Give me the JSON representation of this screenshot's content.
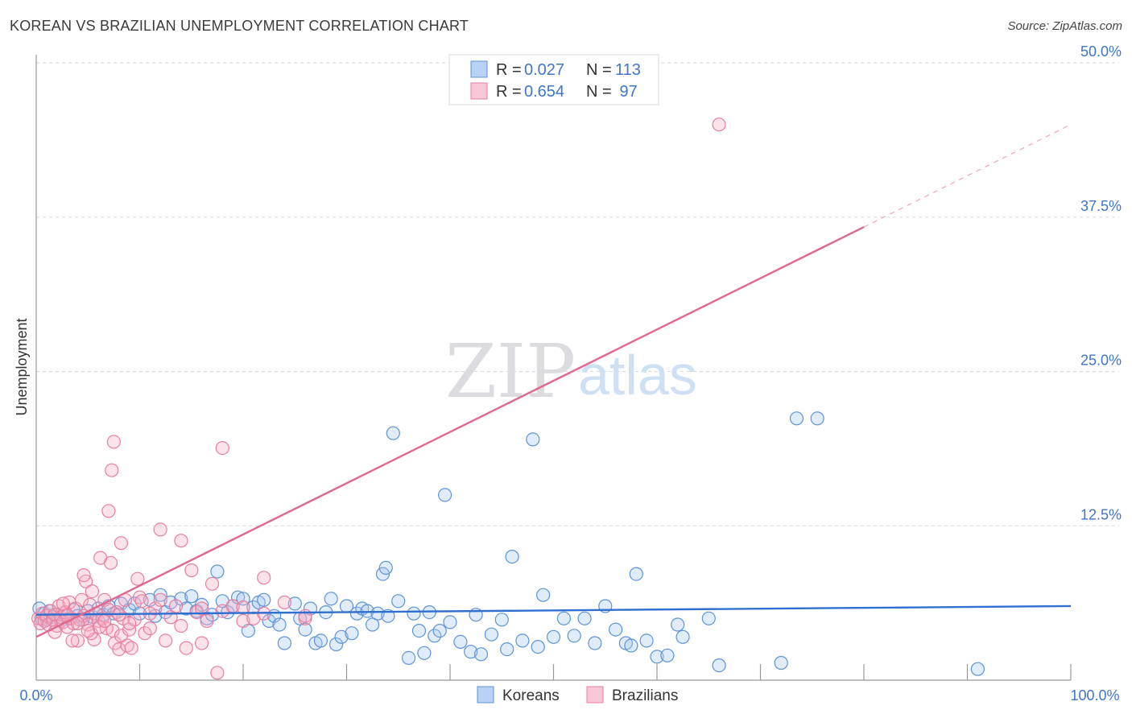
{
  "title": "KOREAN VS BRAZILIAN UNEMPLOYMENT CORRELATION CHART",
  "source": "Source: ZipAtlas.com",
  "watermark": {
    "zip": "ZIP",
    "atlas": "atlas"
  },
  "colors": {
    "korean_fill": "rgba(168,200,242,0.35)",
    "korean_stroke": "#5d93d8",
    "korean_line": "#2f6fd0",
    "brazil_fill": "rgba(246,174,196,0.35)",
    "brazil_stroke": "#e87fa0",
    "brazil_line": "#e0688f",
    "tick": "#3f76c9",
    "grid": "#d8d8e0"
  },
  "stats_legend": [
    {
      "r_label": "R =",
      "r_value": "0.027",
      "n_label": "N =",
      "n_value": "113"
    },
    {
      "r_label": "R =",
      "r_value": "0.654",
      "n_label": "N =",
      "n_value": " 97"
    }
  ],
  "chart_data": {
    "type": "scatter",
    "title": "KOREAN VS BRAZILIAN UNEMPLOYMENT CORRELATION CHART",
    "xlabel": "",
    "ylabel": "Unemployment",
    "xlim": [
      0,
      100
    ],
    "ylim": [
      0,
      50
    ],
    "x_tick_labels": [
      "0.0%",
      "100.0%"
    ],
    "y_ticks": [
      12.5,
      25.0,
      37.5,
      50.0
    ],
    "y_tick_labels": [
      "12.5%",
      "25.0%",
      "37.5%",
      "50.0%"
    ],
    "legend": [
      "Koreans",
      "Brazilians"
    ],
    "series": [
      {
        "name": "Koreans",
        "r": 0.027,
        "n": 113,
        "trend": {
          "x": [
            0,
            100
          ],
          "y": [
            5.3,
            6.0
          ],
          "dashed_from": null
        },
        "points": [
          [
            0.3,
            5.8
          ],
          [
            0.5,
            5.0
          ],
          [
            0.8,
            5.4
          ],
          [
            1.0,
            4.9
          ],
          [
            1.3,
            5.6
          ],
          [
            1.6,
            5.1
          ],
          [
            2.0,
            5.3
          ],
          [
            2.4,
            4.8
          ],
          [
            2.8,
            5.5
          ],
          [
            3.2,
            5.0
          ],
          [
            3.6,
            5.7
          ],
          [
            4.0,
            5.2
          ],
          [
            4.5,
            4.9
          ],
          [
            5.0,
            5.6
          ],
          [
            5.5,
            5.1
          ],
          [
            6.0,
            5.8
          ],
          [
            6.5,
            5.3
          ],
          [
            7.0,
            6.0
          ],
          [
            7.5,
            5.4
          ],
          [
            8.2,
            6.2
          ],
          [
            9.0,
            5.7
          ],
          [
            9.5,
            6.2
          ],
          [
            10.0,
            5.4
          ],
          [
            11.0,
            6.5
          ],
          [
            11.5,
            5.2
          ],
          [
            12.0,
            6.9
          ],
          [
            12.5,
            5.5
          ],
          [
            13.0,
            6.3
          ],
          [
            14.0,
            6.6
          ],
          [
            14.5,
            5.8
          ],
          [
            15.0,
            6.8
          ],
          [
            15.5,
            5.6
          ],
          [
            16.0,
            6.1
          ],
          [
            16.5,
            5.0
          ],
          [
            17.0,
            5.3
          ],
          [
            17.5,
            8.8
          ],
          [
            18.0,
            6.4
          ],
          [
            18.5,
            5.5
          ],
          [
            19.0,
            6.0
          ],
          [
            19.5,
            6.7
          ],
          [
            20.0,
            6.6
          ],
          [
            20.5,
            4.0
          ],
          [
            21.0,
            5.9
          ],
          [
            21.5,
            6.3
          ],
          [
            22.0,
            6.5
          ],
          [
            22.5,
            4.8
          ],
          [
            23.0,
            5.2
          ],
          [
            23.5,
            4.5
          ],
          [
            24.0,
            3.0
          ],
          [
            25.0,
            6.2
          ],
          [
            25.5,
            5.0
          ],
          [
            26.0,
            4.1
          ],
          [
            26.5,
            5.8
          ],
          [
            27.0,
            3.0
          ],
          [
            27.5,
            3.2
          ],
          [
            28.0,
            5.5
          ],
          [
            28.5,
            6.6
          ],
          [
            29.0,
            2.9
          ],
          [
            29.5,
            3.5
          ],
          [
            30.0,
            6.0
          ],
          [
            30.5,
            3.8
          ],
          [
            31.0,
            5.4
          ],
          [
            31.5,
            5.8
          ],
          [
            32.0,
            5.6
          ],
          [
            32.5,
            4.5
          ],
          [
            33.0,
            5.4
          ],
          [
            33.5,
            8.6
          ],
          [
            33.8,
            9.1
          ],
          [
            34.0,
            5.2
          ],
          [
            34.5,
            20.0
          ],
          [
            35.0,
            6.4
          ],
          [
            36.0,
            1.8
          ],
          [
            36.5,
            5.4
          ],
          [
            37.0,
            4.0
          ],
          [
            37.5,
            2.2
          ],
          [
            38.0,
            5.5
          ],
          [
            38.5,
            3.6
          ],
          [
            39.0,
            4.0
          ],
          [
            39.5,
            15.0
          ],
          [
            40.0,
            4.7
          ],
          [
            41.0,
            3.1
          ],
          [
            42.0,
            2.3
          ],
          [
            42.5,
            5.3
          ],
          [
            43.0,
            2.1
          ],
          [
            44.0,
            3.7
          ],
          [
            45.0,
            4.9
          ],
          [
            46.0,
            10.0
          ],
          [
            47.0,
            3.2
          ],
          [
            48.0,
            19.5
          ],
          [
            48.5,
            2.7
          ],
          [
            49.0,
            6.9
          ],
          [
            50.0,
            3.5
          ],
          [
            51.0,
            5.0
          ],
          [
            52.0,
            3.6
          ],
          [
            53.0,
            5.0
          ],
          [
            54.0,
            3.0
          ],
          [
            55.0,
            6.0
          ],
          [
            56.0,
            4.1
          ],
          [
            57.0,
            3.0
          ],
          [
            58.0,
            8.6
          ],
          [
            59.0,
            3.2
          ],
          [
            60.0,
            1.9
          ],
          [
            61.0,
            2.0
          ],
          [
            62.0,
            4.5
          ],
          [
            62.5,
            3.5
          ],
          [
            65.0,
            5.0
          ],
          [
            66.0,
            1.2
          ],
          [
            72.0,
            1.4
          ],
          [
            73.5,
            21.2
          ],
          [
            75.5,
            21.2
          ],
          [
            91.0,
            0.9
          ],
          [
            57.5,
            2.8
          ],
          [
            45.5,
            2.5
          ]
        ]
      },
      {
        "name": "Brazilians",
        "r": 0.654,
        "n": 97,
        "trend": {
          "x": [
            0,
            100
          ],
          "y": [
            3.5,
            45.0
          ],
          "dashed_from": 80
        },
        "points": [
          [
            0.2,
            5.0
          ],
          [
            0.4,
            4.6
          ],
          [
            0.6,
            5.4
          ],
          [
            0.8,
            4.8
          ],
          [
            1.0,
            5.2
          ],
          [
            1.2,
            4.5
          ],
          [
            1.4,
            5.6
          ],
          [
            1.6,
            4.9
          ],
          [
            1.8,
            5.3
          ],
          [
            2.0,
            4.4
          ],
          [
            2.2,
            6.0
          ],
          [
            2.4,
            5.1
          ],
          [
            2.6,
            4.7
          ],
          [
            2.8,
            5.5
          ],
          [
            3.0,
            4.3
          ],
          [
            3.2,
            6.3
          ],
          [
            3.4,
            5.0
          ],
          [
            3.6,
            4.6
          ],
          [
            3.8,
            5.8
          ],
          [
            4.0,
            3.2
          ],
          [
            4.2,
            4.9
          ],
          [
            4.4,
            6.5
          ],
          [
            4.6,
            5.2
          ],
          [
            4.8,
            8.0
          ],
          [
            5.0,
            4.5
          ],
          [
            5.2,
            6.1
          ],
          [
            5.4,
            7.2
          ],
          [
            5.6,
            3.3
          ],
          [
            5.8,
            5.4
          ],
          [
            6.0,
            4.8
          ],
          [
            6.2,
            9.9
          ],
          [
            6.4,
            5.0
          ],
          [
            6.6,
            6.5
          ],
          [
            6.8,
            4.2
          ],
          [
            7.0,
            5.7
          ],
          [
            7.2,
            9.5
          ],
          [
            7.4,
            4.0
          ],
          [
            7.6,
            3.0
          ],
          [
            7.8,
            5.5
          ],
          [
            8.0,
            2.5
          ],
          [
            8.2,
            3.6
          ],
          [
            8.4,
            5.0
          ],
          [
            8.6,
            6.5
          ],
          [
            8.8,
            2.8
          ],
          [
            9.0,
            4.1
          ],
          [
            9.2,
            2.6
          ],
          [
            9.5,
            4.9
          ],
          [
            10.0,
            6.7
          ],
          [
            10.5,
            3.8
          ],
          [
            11.0,
            4.2
          ],
          [
            11.5,
            5.8
          ],
          [
            12.0,
            6.5
          ],
          [
            12.5,
            3.2
          ],
          [
            13.0,
            5.1
          ],
          [
            13.5,
            6.0
          ],
          [
            14.0,
            4.4
          ],
          [
            14.5,
            2.6
          ],
          [
            15.0,
            8.9
          ],
          [
            15.5,
            5.5
          ],
          [
            16.0,
            3.0
          ],
          [
            16.5,
            4.8
          ],
          [
            17.0,
            7.8
          ],
          [
            18.0,
            5.6
          ],
          [
            19.0,
            6.0
          ],
          [
            20.0,
            4.8
          ],
          [
            21.0,
            5.0
          ],
          [
            22.0,
            8.3
          ],
          [
            24.0,
            6.3
          ],
          [
            26.0,
            5.0
          ],
          [
            1.8,
            3.9
          ],
          [
            2.6,
            6.2
          ],
          [
            3.5,
            3.2
          ],
          [
            4.6,
            8.5
          ],
          [
            5.3,
            3.8
          ],
          [
            6.1,
            4.3
          ],
          [
            7.0,
            13.7
          ],
          [
            7.3,
            17.0
          ],
          [
            7.5,
            19.3
          ],
          [
            8.2,
            11.1
          ],
          [
            9.8,
            8.2
          ],
          [
            10.2,
            6.4
          ],
          [
            12.0,
            12.2
          ],
          [
            14.0,
            11.3
          ],
          [
            16.0,
            5.8
          ],
          [
            18.0,
            18.8
          ],
          [
            20.0,
            5.9
          ],
          [
            22.0,
            5.4
          ],
          [
            26.0,
            5.2
          ],
          [
            17.5,
            0.6
          ],
          [
            6.6,
            4.8
          ],
          [
            3.0,
            5.2
          ],
          [
            4.0,
            4.6
          ],
          [
            5.0,
            4.0
          ],
          [
            8.0,
            5.3
          ],
          [
            9.0,
            4.6
          ],
          [
            11.0,
            5.4
          ],
          [
            66.0,
            45.0
          ]
        ]
      }
    ]
  }
}
